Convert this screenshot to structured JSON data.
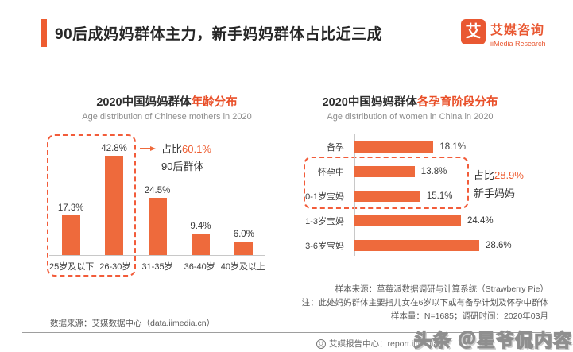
{
  "header": {
    "title": "90后成妈妈群体主力，新手妈妈群体占比近三成",
    "logo": {
      "icon_char": "艾",
      "name_cn": "艾媒咨询",
      "name_en": "iiMedia Research"
    }
  },
  "colors": {
    "accent_orange": "#ee5c30",
    "bar_orange": "#ee6a3c",
    "title_highlight": "#e94f28",
    "dashed_border": "#f25c3a"
  },
  "chart_data": [
    {
      "type": "bar",
      "title_main": "2020中国妈妈群体",
      "title_highlight": "年龄分布",
      "subtitle": "Age distribution of Chinese mothers in 2020",
      "categories": [
        "25岁及以下",
        "26-30岁",
        "31-35岁",
        "36-40岁",
        "40岁及以上"
      ],
      "values": [
        17.3,
        42.8,
        24.5,
        9.4,
        6.0
      ],
      "unit": "%",
      "ylim": [
        0,
        45
      ],
      "grid": false,
      "annotation": {
        "prefix": "占比",
        "value": "60.1%",
        "label": "90后群体",
        "grouped_categories": [
          "25岁及以下",
          "26-30岁"
        ]
      }
    },
    {
      "type": "bar",
      "orientation": "horizontal",
      "title_main": "2020中国妈妈群体",
      "title_highlight": "各孕育阶段分布",
      "subtitle": "Age distribution of women in China in 2020",
      "categories": [
        "备孕",
        "怀孕中",
        "0-1岁宝妈",
        "1-3岁宝妈",
        "3-6岁宝妈"
      ],
      "values": [
        18.1,
        13.8,
        15.1,
        24.4,
        28.6
      ],
      "unit": "%",
      "xlim": [
        0,
        30
      ],
      "grid": false,
      "annotation": {
        "prefix": "占比",
        "value": "28.9%",
        "label": "新手妈妈",
        "grouped_categories": [
          "怀孕中",
          "0-1岁宝妈"
        ]
      }
    }
  ],
  "notes": [
    "样本来源：草莓派数据调研与计算系统（Strawberry Pie）",
    "注：此处妈妈群体主要指儿女在6岁以下或有备孕计划及怀孕中群体",
    "样本量：N=1685；调研时间：2020年03月"
  ],
  "footer": {
    "data_source": "数据来源：艾媒数据中心（data.iimedia.cn）",
    "report_center": "艾媒报告中心：report.iimedia.cn",
    "report_icon_char": "艾"
  },
  "watermark": "头条 ＠星爷侃内容"
}
